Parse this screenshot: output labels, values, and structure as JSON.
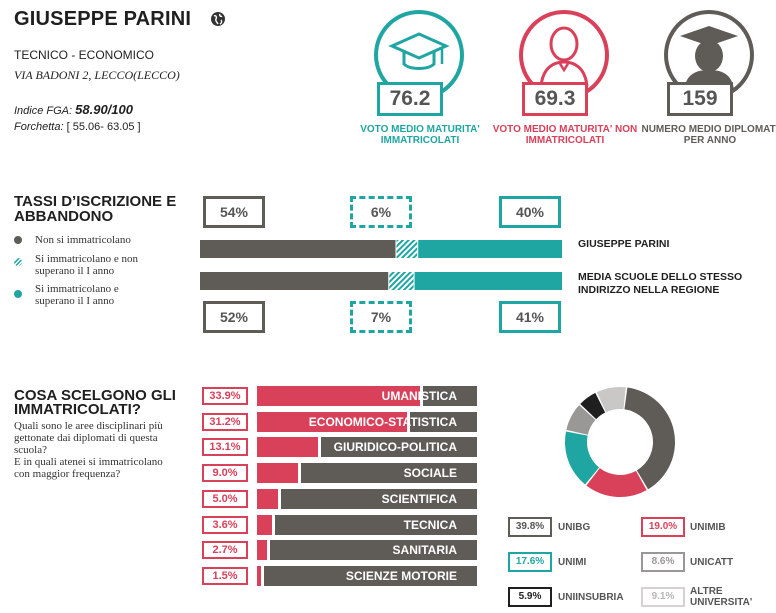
{
  "school": {
    "name": "GIUSEPPE PARINI",
    "type": "TECNICO - ECONOMICO",
    "address": "VIA BADONI 2, LECCO(LECCO)",
    "fga_label": "Indice FGA:",
    "fga_value": "58.90/100",
    "fork_label": "Forchetta:",
    "fork_value": "[ 55.06- 63.05 ]"
  },
  "kpis": [
    {
      "value": "76.2",
      "label": "VOTO MEDIO MATURITA' IMMATRICOLATI",
      "color": "#1fa6a2",
      "icon": "graduation-cap-icon"
    },
    {
      "value": "69.3",
      "label": "VOTO MEDIO MATURITA' NON IMMATRICOLATI",
      "color": "#d9405a",
      "icon": "person-icon"
    },
    {
      "value": "159",
      "label": "NUMERO MEDIO DIPLOMATI PER ANNO",
      "color": "#5f5c58",
      "icon": "graduate-icon"
    }
  ],
  "enrollment": {
    "title_line1": "TASSI D’ISCRIZIONE E",
    "title_line2": "ABBANDONO",
    "legend": [
      {
        "label": "Non si immatricolano",
        "color": "#5f5c58"
      },
      {
        "label_line1": "Si immatricolano e non",
        "label_line2": "superano il I anno",
        "color": "#1fa6a2"
      },
      {
        "label_line1": "Si immatricolano e",
        "label_line2": "superano il I anno",
        "color": "#1fa6a2"
      }
    ],
    "top_pcts": [
      "54%",
      "6%",
      "40%"
    ],
    "bottom_pcts": [
      "52%",
      "7%",
      "41%"
    ],
    "bar_school_label": "GIUSEPPE PARINI",
    "bar_region_label_line1": "MEDIA SCUOLE DELLO STESSO",
    "bar_region_label_line2": "INDIRIZZO NELLA REGIONE",
    "school_fractions": [
      0.54,
      0.06,
      0.4
    ],
    "region_fractions": [
      0.52,
      0.07,
      0.41
    ]
  },
  "choices": {
    "title_line1": "COSA SCELGONO GLI",
    "title_line2": "IMMATRICOLATI?",
    "desc_line1": "Quali sono le aree disciplinari più",
    "desc_line2": "gettonate dai diplomati di questa",
    "desc_line3": "scuola?",
    "desc_line4": "E in quali atenei si immatricolano",
    "desc_line5": "con maggior frequenza?",
    "areas": [
      {
        "pct": "33.9%",
        "name": "UMANISTICA",
        "value": 33.9
      },
      {
        "pct": "31.2%",
        "name": "ECONOMICO-STATISTICA",
        "value": 31.2
      },
      {
        "pct": "13.1%",
        "name": "GIURIDICO-POLITICA",
        "value": 13.1
      },
      {
        "pct": "9.0%",
        "name": "SOCIALE",
        "value": 9.0
      },
      {
        "pct": "5.0%",
        "name": "SCIENTIFICA",
        "value": 5.0
      },
      {
        "pct": "3.6%",
        "name": "TECNICA",
        "value": 3.6
      },
      {
        "pct": "2.7%",
        "name": "SANITARIA",
        "value": 2.7
      },
      {
        "pct": "1.5%",
        "name": "SCIENZE MOTORIE",
        "value": 1.5
      }
    ],
    "universities": [
      {
        "pct": "39.8%",
        "name": "UNIBG",
        "value": 39.8,
        "color": "#5f5c58"
      },
      {
        "pct": "19.0%",
        "name": "UNIMIB",
        "value": 19.0,
        "color": "#d9405a"
      },
      {
        "pct": "17.6%",
        "name": "UNIMI",
        "value": 17.6,
        "color": "#1fa6a2"
      },
      {
        "pct": "8.6%",
        "name": "UNICATT",
        "value": 8.6,
        "color": "#9a9896"
      },
      {
        "pct": "5.9%",
        "name": "UNIINSUBRIA",
        "value": 5.9,
        "color": "#1f1f1f"
      },
      {
        "pct": "9.1%",
        "name_line1": "ALTRE",
        "name_line2": "UNIVERSITA'",
        "value": 9.1,
        "color": "#c9c8c6"
      }
    ]
  }
}
